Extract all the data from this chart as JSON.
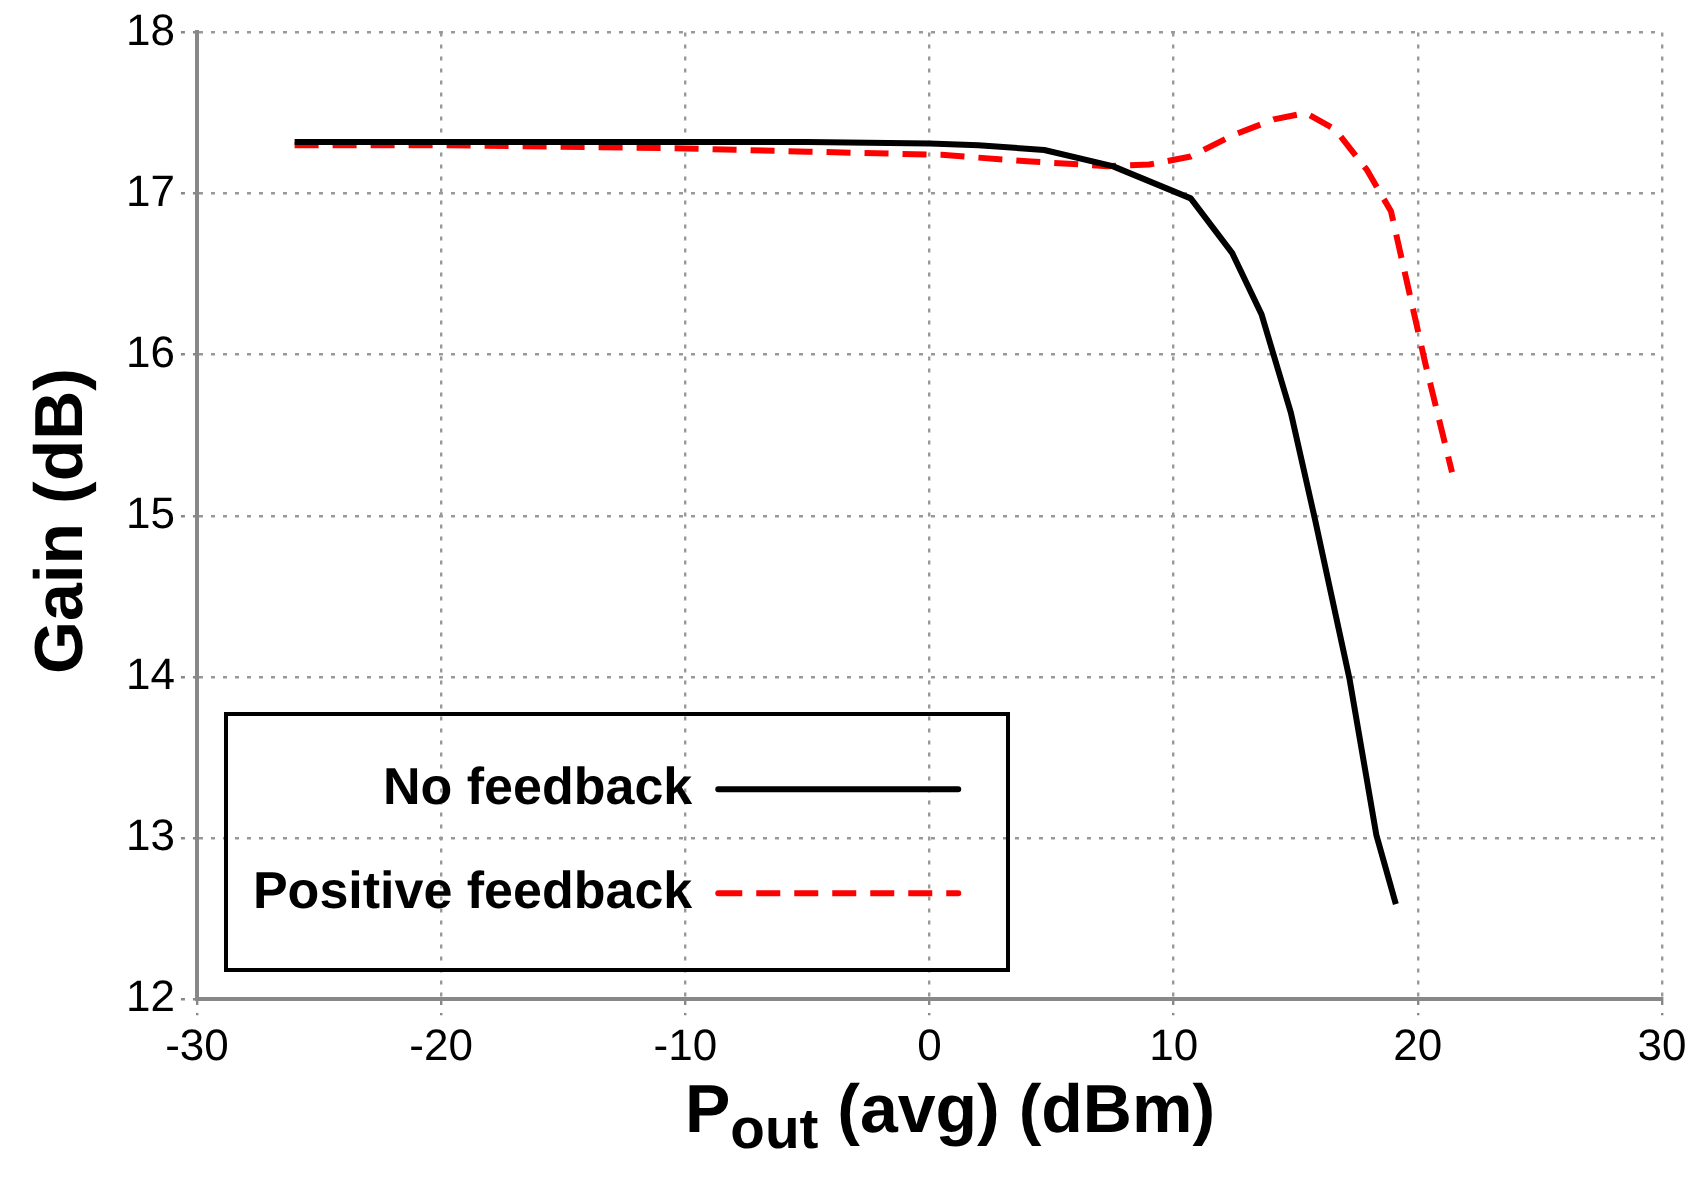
{
  "chart_data": {
    "type": "line",
    "xlabel": "P$_{out}$ (avg) (dBm)",
    "ylabel": "Gain (dB)",
    "xlim": [
      -30,
      30
    ],
    "xticks": [
      -30,
      -20,
      -10,
      0,
      10,
      20,
      30
    ],
    "ylim": [
      12,
      18
    ],
    "yticks": [
      12,
      13,
      14,
      15,
      16,
      17,
      18
    ],
    "grid": true,
    "legend": "bottom left",
    "marker": "none",
    "series": [
      {
        "name": "No feedback",
        "color": "#000000",
        "line_style": "solid",
        "x": [
          -26,
          -20,
          -10,
          -5,
          0,
          2,
          4.7,
          7.5,
          10.7,
          12.4,
          13.6,
          14.8,
          15.8,
          17.2,
          18.3,
          19.1
        ],
        "values": [
          17.32,
          17.32,
          17.32,
          17.32,
          17.31,
          17.3,
          17.27,
          17.17,
          16.97,
          16.63,
          16.25,
          15.64,
          14.97,
          13.99,
          13.02,
          12.59
        ]
      },
      {
        "name": "Positive feedback",
        "color": "#ff0000",
        "line_style": "dashed",
        "x": [
          -26,
          -20,
          -10,
          -5,
          0.5,
          4,
          7.3,
          9,
          10.7,
          12.4,
          14.1,
          15.4,
          16.6,
          17.9,
          18.9,
          19.6,
          20.3,
          21.4
        ],
        "values": [
          17.3,
          17.3,
          17.28,
          17.26,
          17.24,
          17.2,
          17.17,
          17.18,
          17.23,
          17.36,
          17.46,
          17.5,
          17.4,
          17.15,
          16.89,
          16.42,
          15.95,
          15.27
        ]
      }
    ]
  }
}
